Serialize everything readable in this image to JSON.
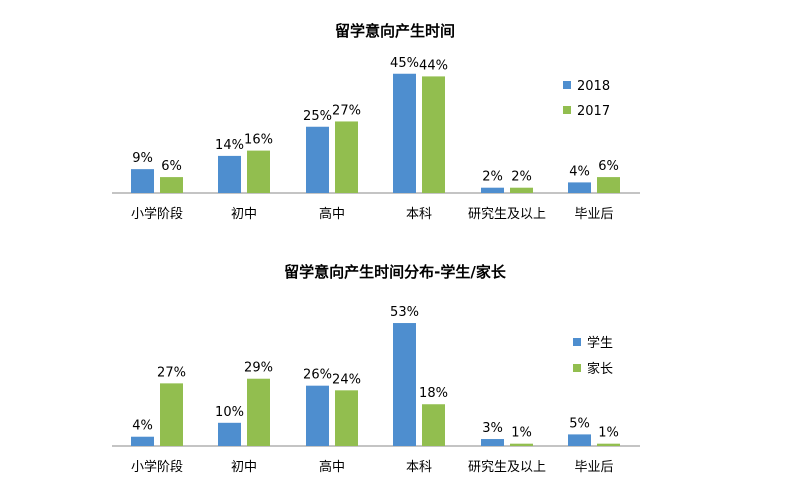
{
  "colors": {
    "blue": "#4E8ECF",
    "green": "#92BE4F",
    "axis": "#888888"
  },
  "chart_data": [
    {
      "type": "bar",
      "title": "留学意向产生时间",
      "categories": [
        "小学阶段",
        "初中",
        "高中",
        "本科",
        "研究生及以上",
        "毕业后"
      ],
      "series": [
        {
          "name": "2018",
          "values": [
            9,
            14,
            25,
            45,
            2,
            4
          ],
          "labels": [
            "9%",
            "14%",
            "25%",
            "45%",
            "2%",
            "4%"
          ]
        },
        {
          "name": "2017",
          "values": [
            6,
            16,
            27,
            44,
            2,
            6
          ],
          "labels": [
            "6%",
            "16%",
            "27%",
            "44%",
            "2%",
            "6%"
          ]
        }
      ],
      "unit": "%",
      "legend": "right",
      "grid": false
    },
    {
      "type": "bar",
      "title": "留学意向产生时间分布-学生/家长",
      "categories": [
        "小学阶段",
        "初中",
        "高中",
        "本科",
        "研究生及以上",
        "毕业后"
      ],
      "series": [
        {
          "name": "学生",
          "values": [
            4,
            10,
            26,
            53,
            3,
            5
          ],
          "labels": [
            "4%",
            "10%",
            "26%",
            "53%",
            "3%",
            "5%"
          ]
        },
        {
          "name": "家长",
          "values": [
            27,
            29,
            24,
            18,
            1,
            1
          ],
          "labels": [
            "27%",
            "29%",
            "24%",
            "18%",
            "1%",
            "1%"
          ]
        }
      ],
      "unit": "%",
      "legend": "right",
      "grid": false
    }
  ]
}
